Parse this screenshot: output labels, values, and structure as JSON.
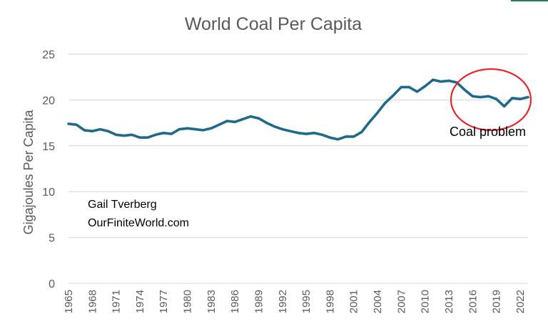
{
  "chart_data": {
    "type": "line",
    "title": "World Coal Per Capita",
    "xlabel": "",
    "ylabel": "Gigajoules Per Capita",
    "ylim": [
      0,
      25
    ],
    "yticks": [
      "0",
      "5",
      "10",
      "15",
      "20",
      "25"
    ],
    "xlim": [
      1965,
      2023
    ],
    "xticks": [
      "1965",
      "1968",
      "1971",
      "1974",
      "1977",
      "1980",
      "1983",
      "1986",
      "1989",
      "1992",
      "1995",
      "1998",
      "2001",
      "2004",
      "2007",
      "2010",
      "2013",
      "2016",
      "2019",
      "2022"
    ],
    "grid": "horizontal",
    "line_color": "#1f6a8a",
    "series": [
      {
        "x": [
          1965,
          1966,
          1967,
          1968,
          1969,
          1970,
          1971,
          1972,
          1973,
          1974,
          1975,
          1976,
          1977,
          1978,
          1979,
          1980,
          1981,
          1982,
          1983,
          1984,
          1985,
          1986,
          1987,
          1988,
          1989,
          1990,
          1991,
          1992,
          1993,
          1994,
          1995,
          1996,
          1997,
          1998,
          1999,
          2000,
          2001,
          2002,
          2003,
          2004,
          2005,
          2006,
          2007,
          2008,
          2009,
          2010,
          2011,
          2012,
          2013,
          2014,
          2015,
          2016,
          2017,
          2018,
          2019,
          2020,
          2021,
          2022,
          2023
        ],
        "values": [
          17.4,
          17.3,
          16.7,
          16.6,
          16.8,
          16.6,
          16.2,
          16.1,
          16.2,
          15.9,
          15.9,
          16.2,
          16.4,
          16.3,
          16.8,
          16.9,
          16.8,
          16.7,
          16.9,
          17.3,
          17.7,
          17.6,
          17.9,
          18.2,
          18.0,
          17.5,
          17.1,
          16.8,
          16.6,
          16.4,
          16.3,
          16.4,
          16.2,
          15.9,
          15.7,
          16.0,
          16.0,
          16.5,
          17.6,
          18.6,
          19.7,
          20.5,
          21.4,
          21.4,
          20.9,
          21.5,
          22.2,
          22.0,
          22.1,
          21.9,
          21.1,
          20.4,
          20.3,
          20.4,
          20.1,
          19.3,
          20.2,
          20.1,
          20.3
        ]
      }
    ],
    "annotations": {
      "credit_line1": "Gail Tverberg",
      "credit_line2": "OurFiniteWorld.com",
      "callout": "Coal problem",
      "callout_color": "#e8232b"
    }
  }
}
